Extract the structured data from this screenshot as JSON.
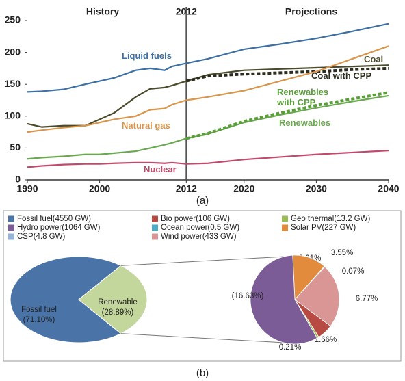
{
  "chart_data": [
    {
      "type": "line",
      "caption": "(a)",
      "annotations": [
        "History",
        "Projections"
      ],
      "divider": 2012,
      "x": [
        1990,
        1992,
        1995,
        1998,
        2000,
        2002,
        2005,
        2007,
        2009,
        2010,
        2012,
        2015,
        2020,
        2025,
        2030,
        2035,
        2040
      ],
      "xlim": [
        1990,
        2040
      ],
      "xticks": [
        1990,
        2000,
        2012,
        2020,
        2030,
        2040
      ],
      "ylim": [
        0,
        250
      ],
      "yticks": [
        0,
        50,
        100,
        150,
        200,
        250
      ],
      "grid": false,
      "series": [
        {
          "name": "Liquid fuels",
          "color": "#3c6fa3",
          "values": [
            138,
            139,
            142,
            150,
            155,
            160,
            172,
            175,
            172,
            178,
            183,
            190,
            205,
            213,
            222,
            233,
            245
          ]
        },
        {
          "name": "Coal",
          "color": "#4a4a2c",
          "values": [
            88,
            83,
            85,
            85,
            95,
            105,
            130,
            143,
            145,
            148,
            155,
            165,
            172,
            174,
            176,
            178,
            180
          ]
        },
        {
          "name": "Coal with CPP",
          "color": "#2b2b1e",
          "dashed": true,
          "values": [
            null,
            null,
            null,
            null,
            null,
            null,
            null,
            null,
            null,
            null,
            155,
            163,
            166,
            168,
            170,
            173,
            175
          ]
        },
        {
          "name": "Natural gas",
          "color": "#d9954a",
          "values": [
            75,
            78,
            82,
            85,
            90,
            95,
            100,
            110,
            112,
            118,
            125,
            130,
            140,
            155,
            170,
            190,
            210
          ]
        },
        {
          "name": "Renewables",
          "color": "#6aa84f",
          "values": [
            33,
            35,
            37,
            40,
            40,
            42,
            45,
            50,
            55,
            58,
            65,
            72,
            90,
            102,
            113,
            123,
            132
          ]
        },
        {
          "name": "Renewables with CPP",
          "color": "#5a9e3a",
          "dashed": true,
          "values": [
            null,
            null,
            null,
            null,
            null,
            null,
            null,
            null,
            null,
            null,
            65,
            73,
            92,
            105,
            117,
            127,
            137
          ]
        },
        {
          "name": "Nuclear",
          "color": "#c04a6a",
          "values": [
            20,
            22,
            24,
            25,
            25,
            26,
            27,
            27,
            26,
            27,
            25,
            26,
            32,
            36,
            40,
            43,
            46
          ]
        }
      ]
    },
    {
      "type": "pie-of-pie",
      "caption": "(b)",
      "pie": {
        "categories": [
          "Fossil fuel",
          "Renewable"
        ],
        "values": [
          71.1,
          28.89
        ],
        "value_labels": [
          "(71.10%)",
          "(28.89%)"
        ],
        "colors": [
          "#4a74a8",
          "#c3d69b"
        ]
      },
      "series": [
        {
          "name": "Fossil fuel(4550 GW)",
          "color": "#4a74a8"
        },
        {
          "name": "Bio power(106 GW)",
          "color": "#b84a44",
          "value": 1.66,
          "value_label": "1.66%"
        },
        {
          "name": "Geo thermal(13.2 GW)",
          "color": "#9bbb59",
          "value": 0.21,
          "value_label": "0.21%"
        },
        {
          "name": "Hydro power(1064 GW)",
          "color": "#7b5c97",
          "value": 16.63,
          "value_label": "(16.63%)"
        },
        {
          "name": "Ocean power(0.5 GW)",
          "color": "#4aacc6",
          "value": 0.01,
          "value_label": "0.01%"
        },
        {
          "name": "Solar PV(227 GW)",
          "color": "#e38b3c",
          "value": 3.55,
          "value_label": "3.55%"
        },
        {
          "name": "CSP(4.8 GW)",
          "color": "#95b3d7",
          "value": 0.07,
          "value_label": "0.07%"
        },
        {
          "name": "Wind power(433 GW)",
          "color": "#d99694",
          "value": 6.77,
          "value_label": "6.77%"
        }
      ]
    }
  ]
}
